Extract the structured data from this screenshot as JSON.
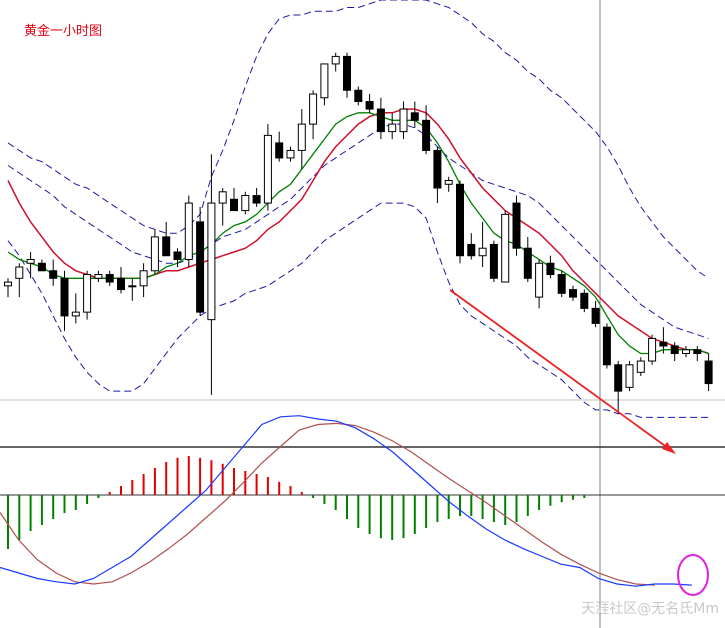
{
  "chart_data": [
    {
      "type": "candlestick",
      "title": "黄金一小时图",
      "indicators": [
        "Bollinger Bands",
        "moving average (green)",
        "moving average (red)"
      ],
      "colors": {
        "up_candle": "#ffffff",
        "down_candle": "#000000",
        "bollinger": "#1a1aa6",
        "ma_short": "#008000",
        "ma_long": "#d0102a",
        "trend_arrow": "#ee2222",
        "title": "#e60012"
      },
      "candles": [
        {
          "o": 0.36,
          "h": 0.38,
          "l": 0.33,
          "c": 0.37
        },
        {
          "o": 0.38,
          "h": 0.42,
          "l": 0.33,
          "c": 0.41
        },
        {
          "o": 0.42,
          "h": 0.45,
          "l": 0.38,
          "c": 0.43
        },
        {
          "o": 0.42,
          "h": 0.43,
          "l": 0.4,
          "c": 0.4
        },
        {
          "o": 0.4,
          "h": 0.43,
          "l": 0.36,
          "c": 0.38
        },
        {
          "o": 0.38,
          "h": 0.4,
          "l": 0.24,
          "c": 0.28
        },
        {
          "o": 0.28,
          "h": 0.34,
          "l": 0.26,
          "c": 0.29
        },
        {
          "o": 0.29,
          "h": 0.4,
          "l": 0.27,
          "c": 0.39
        },
        {
          "o": 0.38,
          "h": 0.4,
          "l": 0.37,
          "c": 0.39
        },
        {
          "o": 0.39,
          "h": 0.4,
          "l": 0.36,
          "c": 0.37
        },
        {
          "o": 0.38,
          "h": 0.41,
          "l": 0.34,
          "c": 0.35
        },
        {
          "o": 0.36,
          "h": 0.38,
          "l": 0.32,
          "c": 0.36
        },
        {
          "o": 0.36,
          "h": 0.42,
          "l": 0.33,
          "c": 0.4
        },
        {
          "o": 0.4,
          "h": 0.51,
          "l": 0.39,
          "c": 0.49
        },
        {
          "o": 0.49,
          "h": 0.53,
          "l": 0.44,
          "c": 0.44
        },
        {
          "o": 0.45,
          "h": 0.46,
          "l": 0.41,
          "c": 0.43
        },
        {
          "o": 0.43,
          "h": 0.6,
          "l": 0.41,
          "c": 0.58
        },
        {
          "o": 0.53,
          "h": 0.57,
          "l": 0.28,
          "c": 0.29
        },
        {
          "o": 0.27,
          "h": 0.71,
          "l": 0.07,
          "c": 0.58
        },
        {
          "o": 0.58,
          "h": 0.62,
          "l": 0.52,
          "c": 0.61
        },
        {
          "o": 0.59,
          "h": 0.62,
          "l": 0.56,
          "c": 0.56
        },
        {
          "o": 0.56,
          "h": 0.61,
          "l": 0.55,
          "c": 0.6
        },
        {
          "o": 0.6,
          "h": 0.62,
          "l": 0.57,
          "c": 0.58
        },
        {
          "o": 0.58,
          "h": 0.79,
          "l": 0.56,
          "c": 0.76
        },
        {
          "o": 0.74,
          "h": 0.77,
          "l": 0.69,
          "c": 0.7
        },
        {
          "o": 0.7,
          "h": 0.73,
          "l": 0.69,
          "c": 0.72
        },
        {
          "o": 0.72,
          "h": 0.83,
          "l": 0.67,
          "c": 0.79
        },
        {
          "o": 0.79,
          "h": 0.88,
          "l": 0.75,
          "c": 0.87
        },
        {
          "o": 0.86,
          "h": 0.95,
          "l": 0.84,
          "c": 0.95
        },
        {
          "o": 0.95,
          "h": 0.98,
          "l": 0.93,
          "c": 0.97
        },
        {
          "o": 0.97,
          "h": 0.98,
          "l": 0.86,
          "c": 0.88
        },
        {
          "o": 0.88,
          "h": 0.89,
          "l": 0.84,
          "c": 0.85
        },
        {
          "o": 0.85,
          "h": 0.87,
          "l": 0.82,
          "c": 0.83
        },
        {
          "o": 0.83,
          "h": 0.86,
          "l": 0.75,
          "c": 0.77
        },
        {
          "o": 0.77,
          "h": 0.82,
          "l": 0.75,
          "c": 0.79
        },
        {
          "o": 0.77,
          "h": 0.85,
          "l": 0.75,
          "c": 0.83
        },
        {
          "o": 0.82,
          "h": 0.85,
          "l": 0.78,
          "c": 0.8
        },
        {
          "o": 0.8,
          "h": 0.84,
          "l": 0.71,
          "c": 0.72
        },
        {
          "o": 0.72,
          "h": 0.73,
          "l": 0.58,
          "c": 0.62
        },
        {
          "o": 0.63,
          "h": 0.65,
          "l": 0.61,
          "c": 0.64
        },
        {
          "o": 0.63,
          "h": 0.64,
          "l": 0.42,
          "c": 0.44
        },
        {
          "o": 0.47,
          "h": 0.5,
          "l": 0.43,
          "c": 0.44
        },
        {
          "o": 0.44,
          "h": 0.53,
          "l": 0.41,
          "c": 0.46
        },
        {
          "o": 0.47,
          "h": 0.48,
          "l": 0.37,
          "c": 0.38
        },
        {
          "o": 0.37,
          "h": 0.56,
          "l": 0.37,
          "c": 0.55
        },
        {
          "o": 0.58,
          "h": 0.6,
          "l": 0.44,
          "c": 0.46
        },
        {
          "o": 0.46,
          "h": 0.49,
          "l": 0.37,
          "c": 0.38
        },
        {
          "o": 0.33,
          "h": 0.43,
          "l": 0.3,
          "c": 0.42
        },
        {
          "o": 0.42,
          "h": 0.44,
          "l": 0.38,
          "c": 0.39
        },
        {
          "o": 0.39,
          "h": 0.4,
          "l": 0.33,
          "c": 0.34
        },
        {
          "o": 0.35,
          "h": 0.36,
          "l": 0.32,
          "c": 0.33
        },
        {
          "o": 0.34,
          "h": 0.35,
          "l": 0.29,
          "c": 0.3
        },
        {
          "o": 0.3,
          "h": 0.32,
          "l": 0.25,
          "c": 0.26
        },
        {
          "o": 0.25,
          "h": 0.26,
          "l": 0.14,
          "c": 0.15
        },
        {
          "o": 0.15,
          "h": 0.16,
          "l": 0.02,
          "c": 0.08
        },
        {
          "o": 0.09,
          "h": 0.16,
          "l": 0.08,
          "c": 0.15
        },
        {
          "o": 0.13,
          "h": 0.17,
          "l": 0.12,
          "c": 0.16
        },
        {
          "o": 0.16,
          "h": 0.23,
          "l": 0.15,
          "c": 0.22
        },
        {
          "o": 0.21,
          "h": 0.25,
          "l": 0.18,
          "c": 0.2
        },
        {
          "o": 0.2,
          "h": 0.21,
          "l": 0.16,
          "c": 0.18
        },
        {
          "o": 0.18,
          "h": 0.2,
          "l": 0.17,
          "c": 0.19
        },
        {
          "o": 0.19,
          "h": 0.2,
          "l": 0.16,
          "c": 0.18
        },
        {
          "o": 0.16,
          "h": 0.18,
          "l": 0.08,
          "c": 0.1
        }
      ],
      "ma_short": [
        0.45,
        0.43,
        0.42,
        0.41,
        0.39,
        0.38,
        0.38,
        0.38,
        0.38,
        0.38,
        0.38,
        0.38,
        0.38,
        0.39,
        0.41,
        0.42,
        0.44,
        0.45,
        0.47,
        0.5,
        0.52,
        0.53,
        0.55,
        0.58,
        0.61,
        0.63,
        0.67,
        0.71,
        0.75,
        0.79,
        0.81,
        0.82,
        0.82,
        0.81,
        0.8,
        0.8,
        0.8,
        0.78,
        0.74,
        0.69,
        0.63,
        0.58,
        0.54,
        0.5,
        0.48,
        0.47,
        0.45,
        0.43,
        0.41,
        0.4,
        0.38,
        0.36,
        0.33,
        0.28,
        0.23,
        0.2,
        0.18,
        0.18,
        0.19,
        0.19,
        0.19,
        0.19,
        0.18
      ],
      "ma_long": [
        0.64,
        0.58,
        0.53,
        0.49,
        0.45,
        0.42,
        0.4,
        0.39,
        0.38,
        0.38,
        0.38,
        0.38,
        0.38,
        0.39,
        0.4,
        0.4,
        0.41,
        0.42,
        0.43,
        0.44,
        0.45,
        0.46,
        0.48,
        0.51,
        0.53,
        0.56,
        0.59,
        0.64,
        0.69,
        0.73,
        0.76,
        0.79,
        0.81,
        0.82,
        0.82,
        0.83,
        0.83,
        0.82,
        0.79,
        0.75,
        0.7,
        0.66,
        0.62,
        0.59,
        0.56,
        0.54,
        0.52,
        0.5,
        0.47,
        0.44,
        0.4,
        0.37,
        0.34,
        0.31,
        0.28,
        0.26,
        0.24,
        0.22,
        0.21,
        0.2,
        0.19,
        0.19,
        0.18
      ],
      "bollinger_upper": [
        0.74,
        0.72,
        0.7,
        0.69,
        0.67,
        0.65,
        0.63,
        0.62,
        0.6,
        0.58,
        0.56,
        0.54,
        0.52,
        0.51,
        0.5,
        0.5,
        0.52,
        0.55,
        0.65,
        0.72,
        0.8,
        0.89,
        0.97,
        1.03,
        1.07,
        1.08,
        1.08,
        1.09,
        1.09,
        1.09,
        1.1,
        1.1,
        1.11,
        1.12,
        1.12,
        1.12,
        1.12,
        1.12,
        1.11,
        1.1,
        1.08,
        1.06,
        1.03,
        1.01,
        0.98,
        0.96,
        0.93,
        0.91,
        0.88,
        0.86,
        0.83,
        0.8,
        0.77,
        0.73,
        0.68,
        0.62,
        0.57,
        0.53,
        0.49,
        0.46,
        0.43,
        0.4,
        0.38
      ],
      "bollinger_middle": [
        0.68,
        0.66,
        0.64,
        0.62,
        0.6,
        0.57,
        0.55,
        0.53,
        0.51,
        0.49,
        0.47,
        0.45,
        0.44,
        0.43,
        0.42,
        0.42,
        0.43,
        0.45,
        0.47,
        0.49,
        0.5,
        0.51,
        0.53,
        0.55,
        0.57,
        0.59,
        0.62,
        0.65,
        0.68,
        0.7,
        0.72,
        0.74,
        0.76,
        0.78,
        0.79,
        0.79,
        0.78,
        0.76,
        0.73,
        0.7,
        0.68,
        0.66,
        0.64,
        0.63,
        0.62,
        0.61,
        0.6,
        0.58,
        0.55,
        0.52,
        0.49,
        0.46,
        0.43,
        0.4,
        0.37,
        0.34,
        0.31,
        0.29,
        0.27,
        0.25,
        0.24,
        0.23,
        0.22
      ],
      "bollinger_lower": [
        0.48,
        0.44,
        0.39,
        0.34,
        0.28,
        0.22,
        0.17,
        0.13,
        0.1,
        0.08,
        0.08,
        0.08,
        0.1,
        0.14,
        0.18,
        0.22,
        0.25,
        0.28,
        0.3,
        0.31,
        0.32,
        0.34,
        0.35,
        0.36,
        0.38,
        0.4,
        0.42,
        0.45,
        0.48,
        0.5,
        0.52,
        0.54,
        0.56,
        0.58,
        0.58,
        0.58,
        0.57,
        0.54,
        0.45,
        0.37,
        0.31,
        0.28,
        0.26,
        0.24,
        0.22,
        0.2,
        0.17,
        0.15,
        0.13,
        0.11,
        0.08,
        0.05,
        0.03,
        0.03,
        0.02,
        0.02,
        0.01,
        0.01,
        0.01,
        0.01,
        0.01,
        0.01,
        0.01
      ],
      "annotations": [
        {
          "kind": "arrow",
          "direction": "down-right"
        },
        {
          "kind": "crosshair"
        }
      ]
    },
    {
      "type": "macd",
      "colors": {
        "hist_pos": "#e00000",
        "hist_neg": "#008000",
        "dif": "#1a3aff",
        "dea": "#b05050",
        "marker": "#e020e0"
      },
      "histogram": [
        -0.9,
        -0.75,
        -0.6,
        -0.5,
        -0.4,
        -0.3,
        -0.25,
        -0.15,
        -0.05,
        0.05,
        0.15,
        0.25,
        0.35,
        0.45,
        0.55,
        0.62,
        0.65,
        0.62,
        0.58,
        0.52,
        0.45,
        0.4,
        0.35,
        0.3,
        0.22,
        0.15,
        0.05,
        -0.05,
        -0.15,
        -0.25,
        -0.4,
        -0.55,
        -0.65,
        -0.72,
        -0.75,
        -0.72,
        -0.65,
        -0.55,
        -0.45,
        -0.4,
        -0.35,
        -0.35,
        -0.4,
        -0.45,
        -0.5,
        -0.45,
        -0.35,
        -0.25,
        -0.18,
        -0.12,
        -0.08,
        -0.05
      ],
      "dif": [
        -0.45,
        -0.5,
        -0.55,
        -0.58,
        -0.6,
        -0.55,
        -0.45,
        -0.35,
        -0.2,
        -0.05,
        0.1,
        0.25,
        0.45,
        0.65,
        0.85,
        0.92,
        0.93,
        0.9,
        0.88,
        0.82,
        0.72,
        0.6,
        0.45,
        0.3,
        0.15,
        0.02,
        -0.1,
        -0.2,
        -0.28,
        -0.35,
        -0.42,
        -0.45,
        -0.55,
        -0.6,
        -0.62,
        -0.6,
        -0.6,
        -0.61
      ],
      "dea": [
        0.05,
        -0.2,
        -0.38,
        -0.5,
        -0.58,
        -0.6,
        -0.58,
        -0.5,
        -0.4,
        -0.28,
        -0.15,
        0.0,
        0.15,
        0.32,
        0.5,
        0.65,
        0.8,
        0.85,
        0.86,
        0.84,
        0.78,
        0.7,
        0.6,
        0.48,
        0.36,
        0.25,
        0.14,
        0.02,
        -0.1,
        -0.22,
        -0.33,
        -0.42,
        -0.5,
        -0.56,
        -0.6,
        -0.61
      ]
    }
  ],
  "watermark": "天涯社区@无名氏Mm"
}
